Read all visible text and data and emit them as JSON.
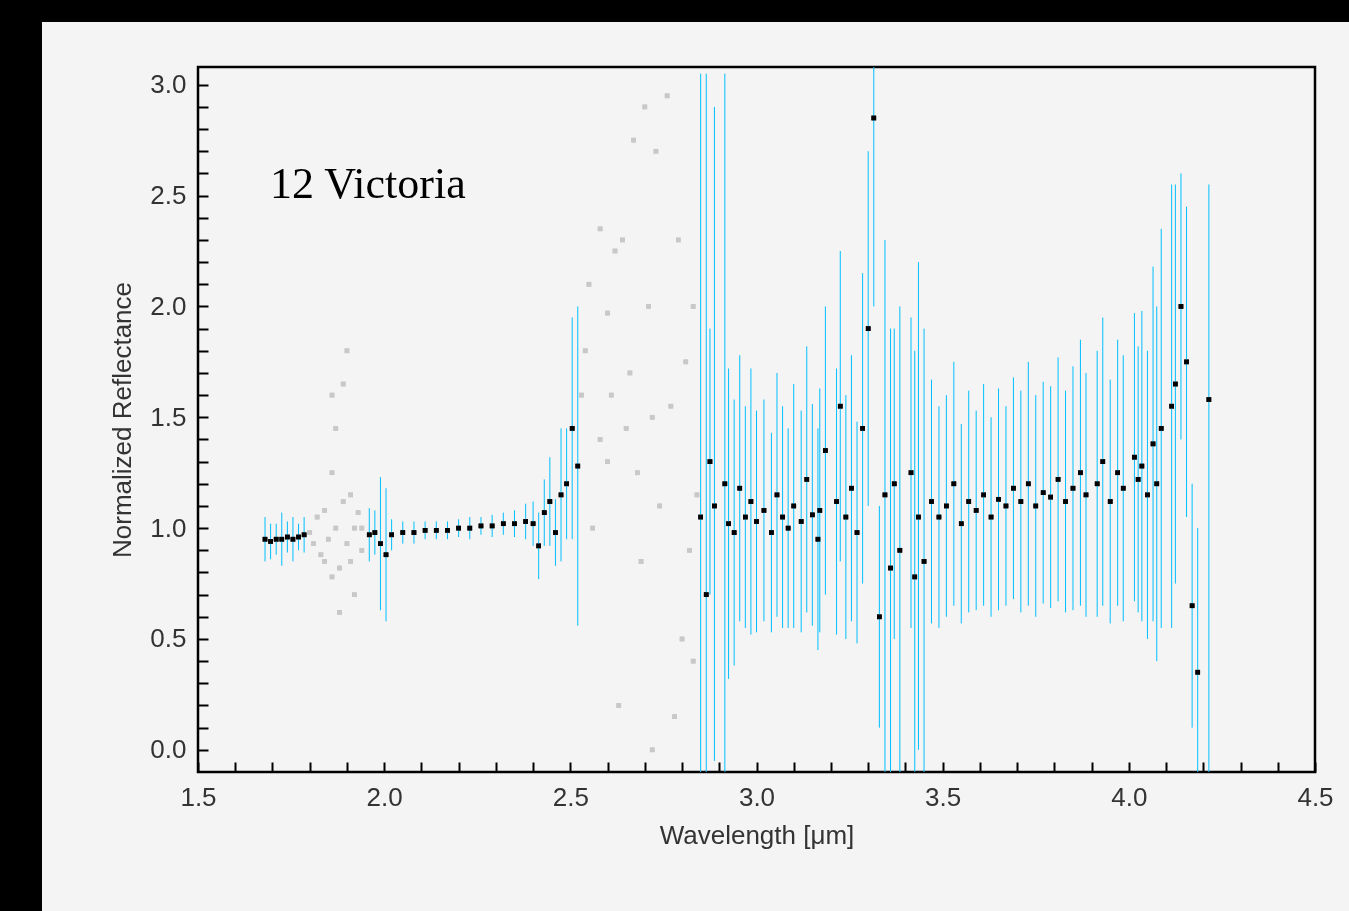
{
  "chart_data": {
    "type": "scatter",
    "title": "12 Victoria",
    "xlabel": "Wavelength [μm]",
    "ylabel": "Normalized Reflectance",
    "xlim": [
      1.5,
      4.5
    ],
    "ylim": [
      -0.1,
      3.08
    ],
    "xticks": [
      {
        "value": 1.5,
        "label": "1.5"
      },
      {
        "value": 1.6,
        "label": null
      },
      {
        "value": 1.7,
        "label": null
      },
      {
        "value": 1.8,
        "label": null
      },
      {
        "value": 1.9,
        "label": null
      },
      {
        "value": 2,
        "label": "2.0"
      },
      {
        "value": 2.1,
        "label": null
      },
      {
        "value": 2.2,
        "label": null
      },
      {
        "value": 2.3,
        "label": null
      },
      {
        "value": 2.4,
        "label": null
      },
      {
        "value": 2.5,
        "label": "2.5"
      },
      {
        "value": 2.6,
        "label": null
      },
      {
        "value": 2.7,
        "label": null
      },
      {
        "value": 2.8,
        "label": null
      },
      {
        "value": 2.9,
        "label": null
      },
      {
        "value": 3,
        "label": "3.0"
      },
      {
        "value": 3.1,
        "label": null
      },
      {
        "value": 3.2,
        "label": null
      },
      {
        "value": 3.3,
        "label": null
      },
      {
        "value": 3.4,
        "label": null
      },
      {
        "value": 3.5,
        "label": "3.5"
      },
      {
        "value": 3.6,
        "label": null
      },
      {
        "value": 3.7,
        "label": null
      },
      {
        "value": 3.8,
        "label": null
      },
      {
        "value": 3.9,
        "label": null
      },
      {
        "value": 4,
        "label": "4.0"
      },
      {
        "value": 4.1,
        "label": null
      },
      {
        "value": 4.2,
        "label": null
      },
      {
        "value": 4.3,
        "label": null
      },
      {
        "value": 4.4,
        "label": null
      },
      {
        "value": 4.5,
        "label": "4.5"
      }
    ],
    "yticks": [
      {
        "value": 0,
        "label": "0.0"
      },
      {
        "value": 0.1,
        "label": null
      },
      {
        "value": 0.2,
        "label": null
      },
      {
        "value": 0.3,
        "label": null
      },
      {
        "value": 0.4,
        "label": null
      },
      {
        "value": 0.5,
        "label": "0.5"
      },
      {
        "value": 0.6,
        "label": null
      },
      {
        "value": 0.7,
        "label": null
      },
      {
        "value": 0.8,
        "label": null
      },
      {
        "value": 0.9,
        "label": null
      },
      {
        "value": 1,
        "label": "1.0"
      },
      {
        "value": 1.1,
        "label": null
      },
      {
        "value": 1.2,
        "label": null
      },
      {
        "value": 1.3,
        "label": null
      },
      {
        "value": 1.4,
        "label": null
      },
      {
        "value": 1.5,
        "label": "1.5"
      },
      {
        "value": 1.6,
        "label": null
      },
      {
        "value": 1.7,
        "label": null
      },
      {
        "value": 1.8,
        "label": null
      },
      {
        "value": 1.9,
        "label": null
      },
      {
        "value": 2,
        "label": "2.0"
      },
      {
        "value": 2.1,
        "label": null
      },
      {
        "value": 2.2,
        "label": null
      },
      {
        "value": 2.3,
        "label": null
      },
      {
        "value": 2.4,
        "label": null
      },
      {
        "value": 2.5,
        "label": "2.5"
      },
      {
        "value": 2.6,
        "label": null
      },
      {
        "value": 2.7,
        "label": null
      },
      {
        "value": 2.8,
        "label": null
      },
      {
        "value": 2.9,
        "label": null
      },
      {
        "value": 3,
        "label": "3.0"
      }
    ],
    "grid": false,
    "marker": "square",
    "series": [
      {
        "color": "#c8c8c8",
        "x": [
          1.8,
          1.81,
          1.82,
          1.83,
          1.84,
          1.84,
          1.85,
          1.86,
          1.86,
          1.87,
          1.87,
          1.88,
          1.88,
          1.89,
          1.89,
          1.9,
          1.9,
          1.91,
          1.91,
          1.92,
          1.92,
          1.93,
          1.94,
          1.94,
          1.86,
          2.53,
          2.54,
          2.55,
          2.56,
          2.58,
          2.58,
          2.6,
          2.6,
          2.61,
          2.62,
          2.63,
          2.64,
          2.65,
          2.66,
          2.67,
          2.68,
          2.69,
          2.7,
          2.71,
          2.72,
          2.72,
          2.73,
          2.74,
          2.76,
          2.77,
          2.78,
          2.79,
          2.8,
          2.81,
          2.82,
          2.83,
          2.83,
          2.84
        ],
        "values": [
          0.98,
          0.93,
          1.05,
          0.88,
          1.08,
          0.85,
          0.95,
          1.25,
          0.78,
          1.0,
          1.45,
          0.82,
          0.62,
          1.12,
          1.65,
          0.93,
          1.8,
          1.15,
          0.85,
          1.0,
          0.7,
          1.07,
          0.9,
          1.0,
          1.6,
          1.6,
          1.8,
          2.1,
          1.0,
          1.4,
          2.35,
          1.97,
          1.3,
          1.6,
          2.25,
          0.2,
          2.3,
          1.45,
          1.7,
          2.75,
          1.25,
          0.85,
          2.9,
          2.0,
          0.0,
          1.5,
          2.7,
          1.1,
          2.95,
          1.55,
          0.15,
          2.3,
          0.5,
          1.75,
          0.9,
          0.4,
          2.0,
          1.15
        ]
      },
      {
        "color": "#000000",
        "x": [
          1.68,
          1.695,
          1.71,
          1.725,
          1.74,
          1.755,
          1.77,
          1.785,
          1.96,
          1.975,
          1.99,
          2.005,
          2.02,
          2.05,
          2.08,
          2.11,
          2.14,
          2.17,
          2.2,
          2.23,
          2.26,
          2.29,
          2.32,
          2.35,
          2.38,
          2.4,
          2.415,
          2.43,
          2.445,
          2.46,
          2.475,
          2.49,
          2.505,
          2.52,
          2.85,
          2.865,
          2.875,
          2.887,
          2.915,
          2.925,
          2.94,
          2.955,
          2.97,
          2.985,
          3.0,
          3.02,
          3.04,
          3.055,
          3.07,
          3.085,
          3.1,
          3.12,
          3.135,
          3.15,
          3.165,
          3.17,
          3.185,
          3.215,
          3.225,
          3.24,
          3.255,
          3.27,
          3.285,
          3.3,
          3.315,
          3.33,
          3.345,
          3.36,
          3.37,
          3.385,
          3.415,
          3.425,
          3.435,
          3.45,
          3.47,
          3.49,
          3.51,
          3.53,
          3.55,
          3.57,
          3.59,
          3.61,
          3.63,
          3.65,
          3.67,
          3.69,
          3.71,
          3.73,
          3.75,
          3.77,
          3.79,
          3.81,
          3.83,
          3.85,
          3.87,
          3.885,
          3.915,
          3.93,
          3.95,
          3.97,
          3.985,
          4.015,
          4.025,
          4.035,
          4.05,
          4.065,
          4.075,
          4.087,
          4.115,
          4.125,
          4.14,
          4.155,
          4.17,
          4.185,
          4.215
        ],
        "values": [
          0.95,
          0.94,
          0.95,
          0.95,
          0.96,
          0.95,
          0.96,
          0.97,
          0.97,
          0.98,
          0.93,
          0.88,
          0.97,
          0.98,
          0.98,
          0.99,
          0.99,
          0.99,
          1.0,
          1.0,
          1.01,
          1.01,
          1.02,
          1.02,
          1.03,
          1.02,
          0.92,
          1.07,
          1.12,
          0.98,
          1.15,
          1.2,
          1.45,
          1.28,
          1.05,
          0.7,
          1.3,
          1.1,
          1.2,
          1.02,
          0.98,
          1.18,
          1.05,
          1.12,
          1.03,
          1.08,
          0.98,
          1.15,
          1.05,
          1.0,
          1.1,
          1.03,
          1.22,
          1.06,
          0.95,
          1.08,
          1.35,
          1.12,
          1.55,
          1.05,
          1.18,
          0.98,
          1.45,
          1.9,
          2.85,
          0.6,
          1.15,
          0.82,
          1.2,
          0.9,
          1.25,
          0.78,
          1.05,
          0.85,
          1.12,
          1.05,
          1.1,
          1.2,
          1.02,
          1.12,
          1.08,
          1.15,
          1.05,
          1.13,
          1.1,
          1.18,
          1.12,
          1.2,
          1.1,
          1.16,
          1.14,
          1.22,
          1.12,
          1.18,
          1.25,
          1.15,
          1.2,
          1.3,
          1.12,
          1.25,
          1.18,
          1.32,
          1.22,
          1.28,
          1.15,
          1.38,
          1.2,
          1.45,
          1.55,
          1.65,
          2.0,
          1.75,
          0.65,
          0.35,
          1.58
        ],
        "errors": [
          0.1,
          0.08,
          0.07,
          0.12,
          0.07,
          0.1,
          0.06,
          0.08,
          0.12,
          0.1,
          0.3,
          0.3,
          0.07,
          0.05,
          0.05,
          0.04,
          0.04,
          0.04,
          0.04,
          0.05,
          0.04,
          0.05,
          0.05,
          0.06,
          0.08,
          0.1,
          0.15,
          0.15,
          0.2,
          0.15,
          0.3,
          0.25,
          0.5,
          0.72,
          [
            -0.1,
            3.05
          ],
          [
            -0.1,
            3.05
          ],
          0.6,
          [
            -0.05,
            2.9
          ],
          [
            -0.1,
            3.05
          ],
          0.7,
          0.6,
          0.6,
          0.5,
          0.6,
          0.5,
          0.5,
          0.45,
          0.55,
          0.5,
          0.45,
          0.55,
          0.5,
          0.6,
          0.5,
          0.5,
          0.55,
          0.65,
          0.6,
          0.7,
          0.55,
          0.6,
          0.5,
          0.7,
          0.8,
          [
            2.0,
            3.08
          ],
          0.5,
          [
            -0.1,
            2.3
          ],
          [
            -0.1,
            1.9
          ],
          0.7,
          [
            -0.1,
            2.0
          ],
          0.7,
          [
            -0.1,
            1.8
          ],
          [
            0.0,
            2.2
          ],
          [
            -0.1,
            1.9
          ],
          0.55,
          0.5,
          0.5,
          0.55,
          0.45,
          0.5,
          0.45,
          0.5,
          0.45,
          0.5,
          0.45,
          0.5,
          0.5,
          0.55,
          0.5,
          0.5,
          0.5,
          0.55,
          0.5,
          0.55,
          0.6,
          0.55,
          0.6,
          0.65,
          0.55,
          0.6,
          0.6,
          0.65,
          0.6,
          0.7,
          0.65,
          0.8,
          0.8,
          0.9,
          1.0,
          0.9,
          0.6,
          0.7,
          0.55,
          [
            -0.1,
            1.0
          ],
          [
            -0.1,
            2.55
          ]
        ]
      }
    ]
  }
}
